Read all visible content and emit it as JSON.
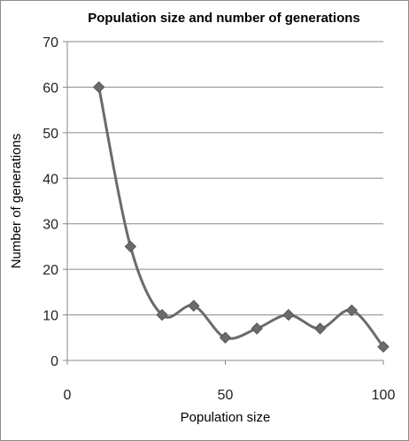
{
  "chart_data": {
    "type": "scatter",
    "title": "Population size and number of generations",
    "xlabel": "Population size",
    "ylabel": "Number of generations",
    "xlim": [
      0,
      100
    ],
    "ylim": [
      0,
      70
    ],
    "xticks": [
      0,
      50,
      100
    ],
    "yticks": [
      0,
      10,
      20,
      30,
      40,
      50,
      60,
      70
    ],
    "grid": "horizontal",
    "smoothed_line": true,
    "marker": "diamond",
    "series_color": "#6b6b6b",
    "series": [
      {
        "points": [
          {
            "x": 10,
            "y": 60
          },
          {
            "x": 20,
            "y": 25
          },
          {
            "x": 30,
            "y": 10
          },
          {
            "x": 40,
            "y": 12
          },
          {
            "x": 50,
            "y": 5
          },
          {
            "x": 60,
            "y": 7
          },
          {
            "x": 70,
            "y": 10
          },
          {
            "x": 80,
            "y": 7
          },
          {
            "x": 90,
            "y": 11
          },
          {
            "x": 100,
            "y": 3
          }
        ]
      }
    ]
  }
}
